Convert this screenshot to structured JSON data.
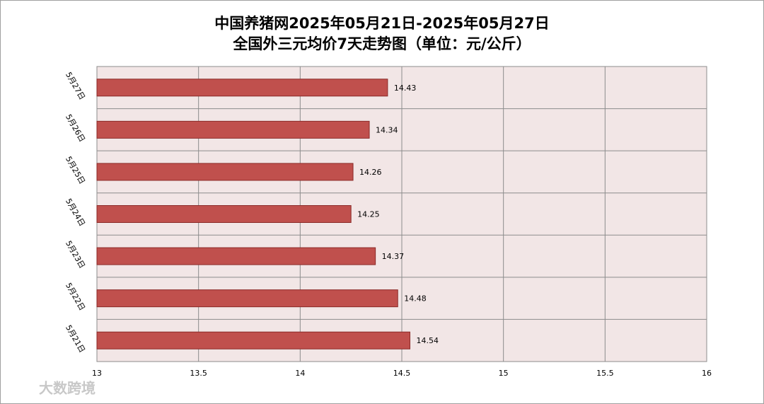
{
  "chart_data": {
    "type": "barh",
    "title": "中国养猪网2025年05月21日-2025年05月27日",
    "subtitle": "全国外三元均价7天走势图（单位：元/公斤）",
    "categories": [
      "5月21日",
      "5月22日",
      "5月23日",
      "5月24日",
      "5月25日",
      "5月26日",
      "5月27日"
    ],
    "values": [
      14.54,
      14.48,
      14.37,
      14.25,
      14.26,
      14.34,
      14.43
    ],
    "color": "#c0504d",
    "xlim": [
      13,
      16
    ],
    "xticks": [
      13,
      13.5,
      14,
      14.5,
      15,
      15.5,
      16
    ],
    "grid": true,
    "watermark": "大数跨境"
  }
}
